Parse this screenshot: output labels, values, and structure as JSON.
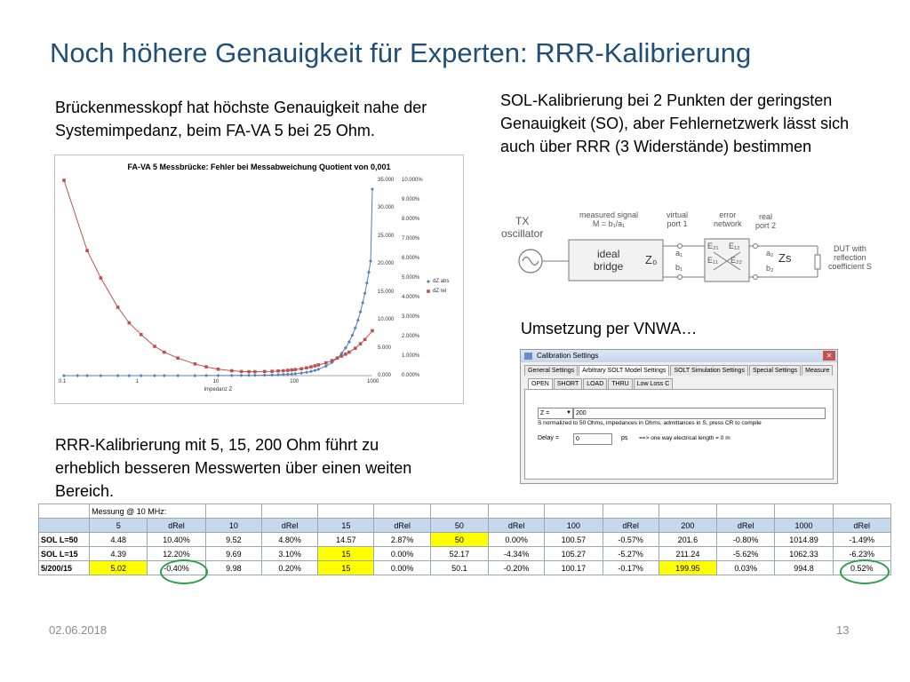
{
  "title": "Noch höhere Genauigkeit für Experten: RRR-Kalibrierung",
  "paragraphs": {
    "left": "Brückenmesskopf hat höchste Genauigkeit nahe der Systemimpedanz, beim FA-VA 5 bei 25 Ohm.",
    "right": "SOL-Kalibrierung bei 2 Punkten der geringsten Genauigkeit (SO), aber Fehlernetzwerk lässt sich auch über RRR (3 Widerstände) bestimmen",
    "rrr": "RRR-Kalibrierung mit 5, 15, 200 Ohm führt zu erheblich besseren Messwerten über einen weiten Bereich.",
    "vnwa": "Umsetzung per VNWA…"
  },
  "chart_data": {
    "type": "scatter",
    "title": "FA-VA 5 Messbrücke: Fehler bei Messabweichung Quotient von 0,001",
    "xlabel": "Impedanz Z",
    "x_scale": "log",
    "xlim": [
      0.1,
      1000
    ],
    "x_ticks": [
      "0.1",
      "1",
      "10",
      "100",
      "1000"
    ],
    "y_left_ticks": [
      "0.000",
      "5.000",
      "10.000",
      "15.000",
      "20.000",
      "25.000",
      "30.000",
      "35.000"
    ],
    "y_right_ticks": [
      "0.000%",
      "1.000%",
      "2.000%",
      "3.000%",
      "4.000%",
      "5.000%",
      "6.000%",
      "7.000%",
      "8.000%",
      "9.000%",
      "10.000%"
    ],
    "ylim_left": [
      0,
      35
    ],
    "ylim_right": [
      0,
      10
    ],
    "legend_position": "right",
    "series": [
      {
        "name": "dZ abs",
        "color": "#4f81bd",
        "axis": "left",
        "x": [
          0.1,
          0.15,
          0.2,
          0.3,
          0.5,
          0.7,
          1,
          1.5,
          2,
          3,
          5,
          7,
          10,
          15,
          20,
          25,
          30,
          40,
          50,
          60,
          70,
          80,
          90,
          100,
          120,
          140,
          160,
          180,
          200,
          250,
          300,
          350,
          400,
          450,
          500,
          550,
          600,
          650,
          700,
          750,
          800,
          850,
          900,
          950,
          1000
        ],
        "y": [
          0.0001,
          0.0002,
          0.0003,
          0.0004,
          0.0008,
          0.001,
          0.0015,
          0.002,
          0.003,
          0.004,
          0.007,
          0.01,
          0.015,
          0.025,
          0.035,
          0.04,
          0.05,
          0.08,
          0.11,
          0.15,
          0.19,
          0.23,
          0.28,
          0.33,
          0.46,
          0.6,
          0.76,
          0.94,
          1.14,
          1.7,
          2.36,
          3.12,
          4.0,
          4.97,
          6.05,
          7.24,
          8.53,
          9.93,
          11.43,
          13.04,
          14.76,
          16.58,
          18.51,
          20.55,
          33.4
        ]
      },
      {
        "name": "dZ rel",
        "color": "#c0504d",
        "axis": "right",
        "x": [
          0.1,
          0.2,
          0.3,
          0.5,
          0.7,
          1,
          1.5,
          2,
          3,
          5,
          7,
          10,
          15,
          20,
          25,
          30,
          40,
          50,
          60,
          70,
          80,
          90,
          100,
          120,
          140,
          160,
          180,
          200,
          250,
          300,
          350,
          400,
          450,
          500,
          600,
          700,
          800,
          1000
        ],
        "y": [
          10.0,
          6.4,
          5.0,
          3.5,
          2.7,
          2.1,
          1.5,
          1.2,
          0.9,
          0.6,
          0.45,
          0.33,
          0.25,
          0.21,
          0.2,
          0.2,
          0.21,
          0.22,
          0.24,
          0.25,
          0.27,
          0.29,
          0.31,
          0.35,
          0.4,
          0.45,
          0.5,
          0.55,
          0.65,
          0.77,
          0.9,
          1.0,
          1.1,
          1.2,
          1.4,
          1.63,
          1.85,
          2.3
        ]
      }
    ]
  },
  "diagram": {
    "tx": "TX\noscillator",
    "measured": "measured signal\nM = b₁/a₁",
    "virtual": "virtual\nport 1",
    "error": "error\nnetwork",
    "real": "real\nport 2",
    "bridge": "ideal\nbridge",
    "z0": "Z₀",
    "a1": "a₁",
    "b1": "b₁",
    "e21": "E₂₁",
    "e12": "E₁₂",
    "e11": "E₁₁",
    "e22": "E₂₂",
    "a2": "a₂",
    "b2": "b₂",
    "zs": "Zs",
    "dut": "DUT with\nreflection\ncoefficient S"
  },
  "dialog": {
    "title": "Calibration Settings",
    "tabs": [
      "General Settings",
      "Arbitrary SOLT Model Settings",
      "SOLT Simulation Settings",
      "Special Settings",
      "Measure"
    ],
    "subtabs": [
      "OPEN",
      "SHORT",
      "LOAD",
      "THRU",
      "Low Loss C"
    ],
    "z_label": "Z =",
    "z_value": "200",
    "info": "S normalized to 50 Ohms, impedances in Ohms, admittances in S, press CR to compile",
    "delay_label": "Delay =",
    "delay_value": "0",
    "delay_unit": "ps",
    "delay_note": "==> one way electrical length = 0 m"
  },
  "table": {
    "caption": "Messung @ 10 MHz:",
    "header": [
      "",
      "5",
      "dRel",
      "10",
      "dRel",
      "15",
      "dRel",
      "50",
      "dRel",
      "100",
      "dRel",
      "200",
      "dRel",
      "1000",
      "dRel"
    ],
    "rows": [
      {
        "label": "SOL  L=50",
        "cells": [
          "4.48",
          "10.40%",
          "9.52",
          "4.80%",
          "14.57",
          "2.87%",
          "50",
          "0.00%",
          "100.57",
          "-0.57%",
          "201.6",
          "-0.80%",
          "1014.89",
          "-1.49%"
        ],
        "highlight": [
          6
        ]
      },
      {
        "label": "SOL L=15",
        "cells": [
          "4.39",
          "12.20%",
          "9.69",
          "3.10%",
          "15",
          "0.00%",
          "52.17",
          "-4.34%",
          "105.27",
          "-5.27%",
          "211.24",
          "-5.62%",
          "1062.33",
          "-6.23%"
        ],
        "highlight": [
          4
        ]
      },
      {
        "label": "5/200/15",
        "cells": [
          "5.02",
          "-0.40%",
          "9.98",
          "0.20%",
          "15",
          "0.00%",
          "50.1",
          "-0.20%",
          "100.17",
          "-0.17%",
          "199.95",
          "0.03%",
          "994.8",
          "0.52%"
        ],
        "highlight": [
          0,
          4,
          10
        ]
      }
    ]
  },
  "footer": {
    "date": "02.06.2018",
    "page": "13"
  }
}
